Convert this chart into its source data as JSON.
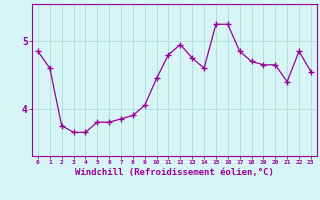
{
  "x": [
    0,
    1,
    2,
    3,
    4,
    5,
    6,
    7,
    8,
    9,
    10,
    11,
    12,
    13,
    14,
    15,
    16,
    17,
    18,
    19,
    20,
    21,
    22,
    23
  ],
  "y": [
    4.85,
    4.6,
    3.75,
    3.65,
    3.65,
    3.8,
    3.8,
    3.85,
    3.9,
    4.05,
    4.45,
    4.8,
    4.95,
    4.75,
    4.6,
    5.25,
    5.25,
    4.85,
    4.7,
    4.65,
    4.65,
    4.4,
    4.85,
    4.55
  ],
  "line_color": "#990099",
  "marker_color": "#990099",
  "bg_color": "#d8f5f5",
  "grid_color": "#aadddd",
  "axis_color": "#990099",
  "tick_color": "#990099",
  "xlabel": "Windchill (Refroidissement éolien,°C)",
  "xlabel_fontsize": 6.5,
  "ytick_labels": [
    "4",
    "5"
  ],
  "yticks": [
    4,
    5
  ],
  "ylim": [
    3.3,
    5.55
  ],
  "xlim": [
    -0.5,
    23.5
  ]
}
